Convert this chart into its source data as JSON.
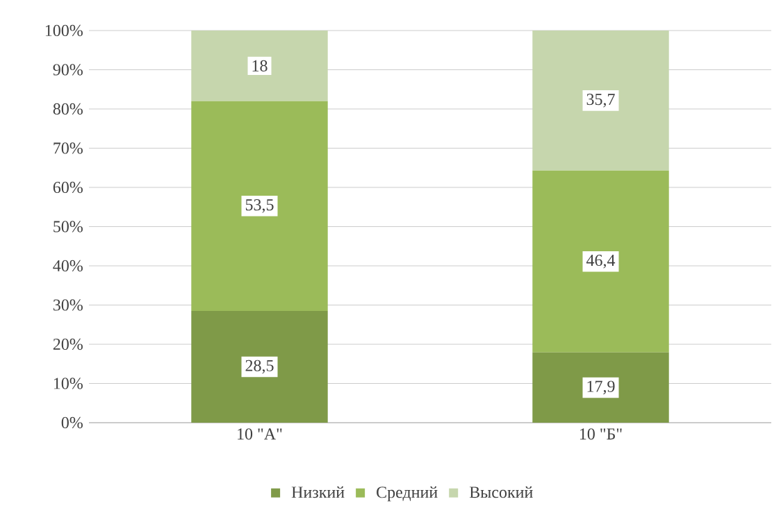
{
  "chart_data": {
    "type": "bar",
    "stacked": true,
    "categories": [
      "10 \"А\"",
      "10 \"Б\""
    ],
    "series": [
      {
        "name": "Низкий",
        "color": "#7f9a48",
        "values": [
          28.5,
          17.9
        ],
        "value_labels": [
          "28,5",
          "17,9"
        ]
      },
      {
        "name": "Средний",
        "color": "#9bbb59",
        "values": [
          53.5,
          46.4
        ],
        "value_labels": [
          "53,5",
          "46,4"
        ]
      },
      {
        "name": "Высокий",
        "color": "#c6d6ad",
        "values": [
          18,
          35.7
        ],
        "value_labels": [
          "18",
          "35,7"
        ]
      }
    ],
    "ylim": [
      0,
      100
    ],
    "yticks": [
      {
        "value": 0,
        "label": "0%"
      },
      {
        "value": 10,
        "label": "10%"
      },
      {
        "value": 20,
        "label": "20%"
      },
      {
        "value": 30,
        "label": "30%"
      },
      {
        "value": 40,
        "label": "40%"
      },
      {
        "value": 50,
        "label": "50%"
      },
      {
        "value": 60,
        "label": "60%"
      },
      {
        "value": 70,
        "label": "70%"
      },
      {
        "value": 80,
        "label": "80%"
      },
      {
        "value": 90,
        "label": "90%"
      },
      {
        "value": 100,
        "label": "100%"
      }
    ],
    "grid": "y",
    "legend": "bottom"
  }
}
